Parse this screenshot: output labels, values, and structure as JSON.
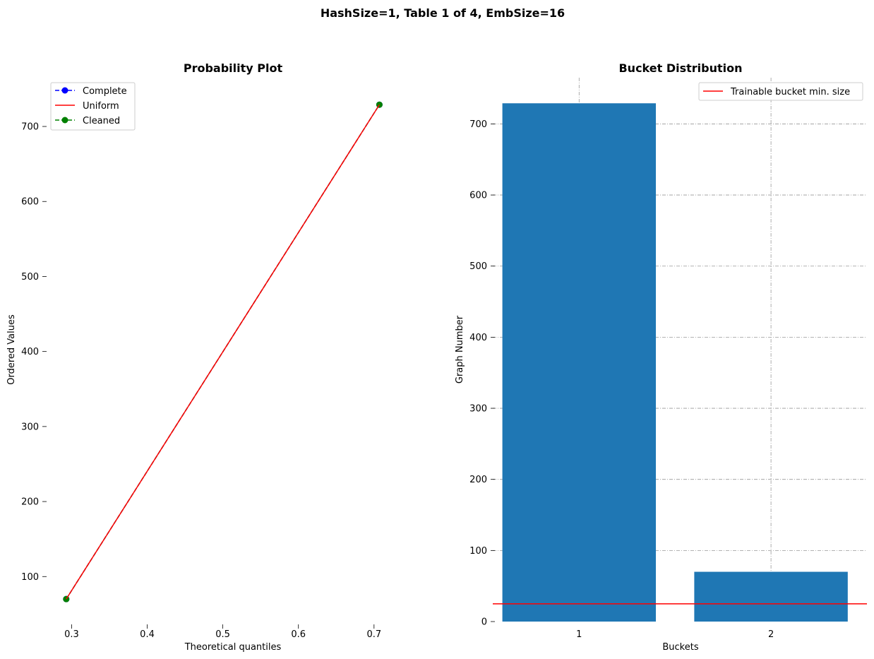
{
  "figure": {
    "suptitle": "HashSize=1, Table 1 of 4, EmbSize=16"
  },
  "chart_data": [
    {
      "type": "line",
      "title": "Probability Plot",
      "xlabel": "Theoretical quantiles",
      "ylabel": "Ordered Values",
      "xlim": [
        0.28,
        0.745
      ],
      "ylim": [
        40,
        765
      ],
      "xticks": [
        0.3,
        0.4,
        0.5,
        0.6,
        0.7
      ],
      "xtick_labels": [
        "0.3",
        "0.4",
        "0.5",
        "0.6",
        "0.7"
      ],
      "yticks": [
        100,
        200,
        300,
        400,
        500,
        600,
        700
      ],
      "ytick_labels": [
        "100",
        "200",
        "300",
        "400",
        "500",
        "600",
        "700"
      ],
      "grid": false,
      "legend_position": "top-left",
      "series": [
        {
          "name": "Complete",
          "style": "dashed-marker",
          "color": "#0000ff",
          "x": [
            0.2929,
            0.7071
          ],
          "y": [
            70,
            729
          ]
        },
        {
          "name": "Uniform",
          "style": "solid",
          "color": "#ff0000",
          "x": [
            0.2929,
            0.7071
          ],
          "y": [
            70,
            729
          ]
        },
        {
          "name": "Cleaned",
          "style": "dashed-marker",
          "color": "#008000",
          "x": [
            0.2929,
            0.7071
          ],
          "y": [
            70,
            729
          ]
        }
      ]
    },
    {
      "type": "bar",
      "title": "Bucket Distribution",
      "xlabel": "Buckets",
      "ylabel": "Graph Number",
      "categories": [
        "1",
        "2"
      ],
      "values": [
        729,
        70
      ],
      "bar_color": "#1f77b4",
      "xlim": [
        0.55,
        2.5
      ],
      "ylim": [
        0,
        765
      ],
      "yticks": [
        0,
        100,
        200,
        300,
        400,
        500,
        600,
        700
      ],
      "ytick_labels": [
        "0",
        "100",
        "200",
        "300",
        "400",
        "500",
        "600",
        "700"
      ],
      "grid": true,
      "legend_position": "top-right",
      "hline": {
        "name": "Trainable bucket min. size",
        "y": 25,
        "color": "#ff0000"
      }
    }
  ]
}
